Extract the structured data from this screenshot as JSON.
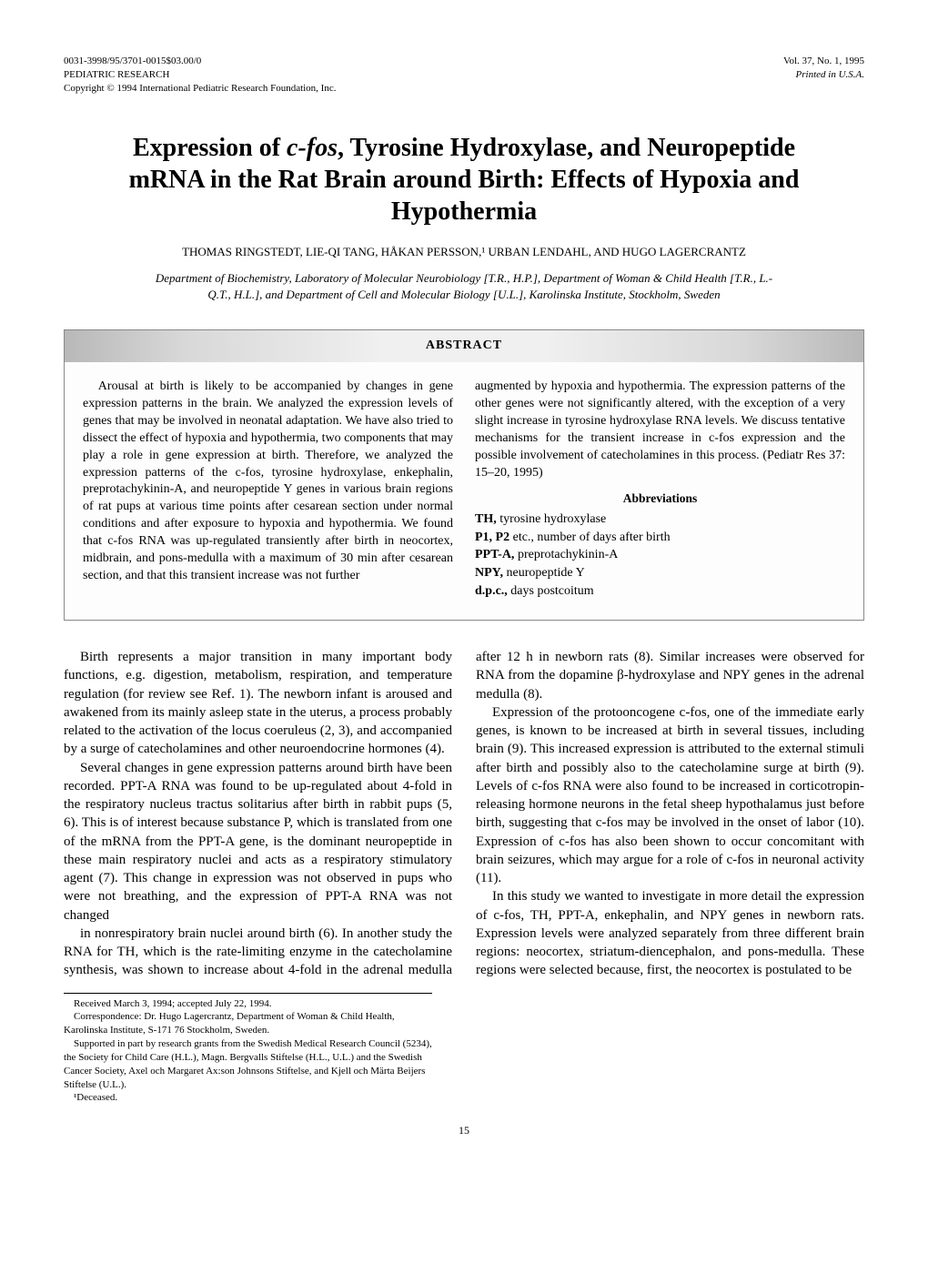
{
  "header": {
    "left_line1": "0031-3998/95/3701-0015$03.00/0",
    "left_line2": "PEDIATRIC RESEARCH",
    "left_line3": "Copyright © 1994 International Pediatric Research Foundation, Inc.",
    "right_line1": "Vol. 37, No. 1, 1995",
    "right_line2": "Printed in U.S.A."
  },
  "title_parts": {
    "p1": "Expression of ",
    "p2": "c-fos",
    "p3": ", Tyrosine Hydroxylase, and Neuropeptide mRNA in the Rat Brain around Birth: Effects of Hypoxia and Hypothermia"
  },
  "authors": "THOMAS RINGSTEDT, LIE-QI TANG, HÅKAN PERSSON,¹ URBAN LENDAHL, AND HUGO LAGERCRANTZ",
  "affiliation": "Department of Biochemistry, Laboratory of Molecular Neurobiology [T.R., H.P.], Department of Woman & Child Health [T.R., L.-Q.T., H.L.], and Department of Cell and Molecular Biology [U.L.], Karolinska Institute, Stockholm, Sweden",
  "abstract": {
    "heading": "ABSTRACT",
    "left": "Arousal at birth is likely to be accompanied by changes in gene expression patterns in the brain. We analyzed the expression levels of genes that may be involved in neonatal adaptation. We have also tried to dissect the effect of hypoxia and hypothermia, two components that may play a role in gene expression at birth. Therefore, we analyzed the expression patterns of the c-fos, tyrosine hydroxylase, enkephalin, preprotachykinin-A, and neuropeptide Y genes in various brain regions of rat pups at various time points after cesarean section under normal conditions and after exposure to hypoxia and hypothermia. We found that c-fos RNA was up-regulated transiently after birth in neocortex, midbrain, and pons-medulla with a maximum of 30 min after cesarean section, and that this transient increase was not further",
    "right_top": "augmented by hypoxia and hypothermia. The expression patterns of the other genes were not significantly altered, with the exception of a very slight increase in tyrosine hydroxylase RNA levels. We discuss tentative mechanisms for the transient increase in c-fos expression and the possible involvement of catecholamines in this process. (Pediatr Res 37: 15–20, 1995)",
    "abbrev_heading": "Abbreviations",
    "abbrevs": [
      {
        "term": "TH,",
        "def": " tyrosine hydroxylase"
      },
      {
        "term": "P1, P2",
        "def": " etc., number of days after birth"
      },
      {
        "term": "PPT-A,",
        "def": " preprotachykinin-A"
      },
      {
        "term": "NPY,",
        "def": " neuropeptide Y"
      },
      {
        "term": "d.p.c.,",
        "def": " days postcoitum"
      }
    ]
  },
  "body": {
    "p1": "Birth represents a major transition in many important body functions, e.g. digestion, metabolism, respiration, and temperature regulation (for review see Ref. 1). The newborn infant is aroused and awakened from its mainly asleep state in the uterus, a process probably related to the activation of the locus coeruleus (2, 3), and accompanied by a surge of catecholamines and other neuroendocrine hormones (4).",
    "p2": "Several changes in gene expression patterns around birth have been recorded. PPT-A RNA was found to be up-regulated about 4-fold in the respiratory nucleus tractus solitarius after birth in rabbit pups (5, 6). This is of interest because substance P, which is translated from one of the mRNA from the PPT-A gene, is the dominant neuropeptide in these main respiratory nuclei and acts as a respiratory stimulatory agent (7). This change in expression was not observed in pups who were not breathing, and the expression of PPT-A RNA was not changed",
    "p3": "in nonrespiratory brain nuclei around birth (6). In another study the RNA for TH, which is the rate-limiting enzyme in the catecholamine synthesis, was shown to increase about 4-fold in the adrenal medulla after 12 h in newborn rats (8). Similar increases were observed for RNA from the dopamine β-hydroxylase and NPY genes in the adrenal medulla (8).",
    "p4": "Expression of the protooncogene c-fos, one of the immediate early genes, is known to be increased at birth in several tissues, including brain (9). This increased expression is attributed to the external stimuli after birth and possibly also to the catecholamine surge at birth (9). Levels of c-fos RNA were also found to be increased in corticotropin-releasing hormone neurons in the fetal sheep hypothalamus just before birth, suggesting that c-fos may be involved in the onset of labor (10). Expression of c-fos has also been shown to occur concomitant with brain seizures, which may argue for a role of c-fos in neuronal activity (11).",
    "p5": "In this study we wanted to investigate in more detail the expression of c-fos, TH, PPT-A, enkephalin, and NPY genes in newborn rats. Expression levels were analyzed separately from three different brain regions: neocortex, striatum-diencephalon, and pons-medulla. These regions were selected because, first, the neocortex is postulated to be"
  },
  "footnotes": {
    "f1": "Received March 3, 1994; accepted July 22, 1994.",
    "f2": "Correspondence: Dr. Hugo Lagercrantz, Department of Woman & Child Health, Karolinska Institute, S-171 76 Stockholm, Sweden.",
    "f3": "Supported in part by research grants from the Swedish Medical Research Council (5234), the Society for Child Care (H.L.), Magn. Bergvalls Stiftelse (H.L., U.L.) and the Swedish Cancer Society, Axel och Margaret Ax:son Johnsons Stiftelse, and Kjell och Märta Beijers Stiftelse (U.L.).",
    "f4": "¹Deceased."
  },
  "page_number": "15"
}
